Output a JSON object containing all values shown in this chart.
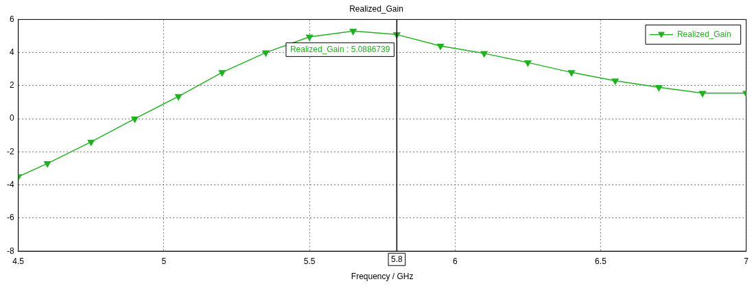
{
  "chart_data": {
    "type": "line",
    "title": "Realized_Gain",
    "xlabel": "Frequency / GHz",
    "x": [
      4.5,
      4.6,
      4.75,
      4.9,
      5.05,
      5.2,
      5.35,
      5.5,
      5.65,
      5.8,
      5.95,
      6.1,
      6.25,
      6.4,
      6.55,
      6.7,
      6.85,
      7
    ],
    "series": [
      {
        "name": "Realized_Gain",
        "color": "#22b022",
        "values": [
          -3.5,
          -2.7,
          -1.4,
          0,
          1.35,
          2.8,
          4.0,
          4.95,
          5.3,
          5.09,
          4.4,
          3.95,
          3.4,
          2.8,
          2.3,
          1.9,
          1.55,
          1.55
        ]
      }
    ],
    "xlim": [
      4.5,
      7
    ],
    "xticks": [
      4.5,
      5,
      5.5,
      6,
      6.5,
      7
    ],
    "ylim": [
      -8,
      6
    ],
    "yticks": [
      -8,
      -6,
      -4,
      -2,
      0,
      2,
      4,
      6
    ],
    "grid": true,
    "legend": "top right",
    "marker": "triangle",
    "line_style": "solid",
    "ref_lines": [
      {
        "axis": "x",
        "value": 5.8,
        "label": "5.8",
        "color": "#000000"
      }
    ],
    "annotations": [
      {
        "text": "Realized_Gain : 5.0886739",
        "x": 5.8,
        "y": 5.0886739
      }
    ]
  }
}
